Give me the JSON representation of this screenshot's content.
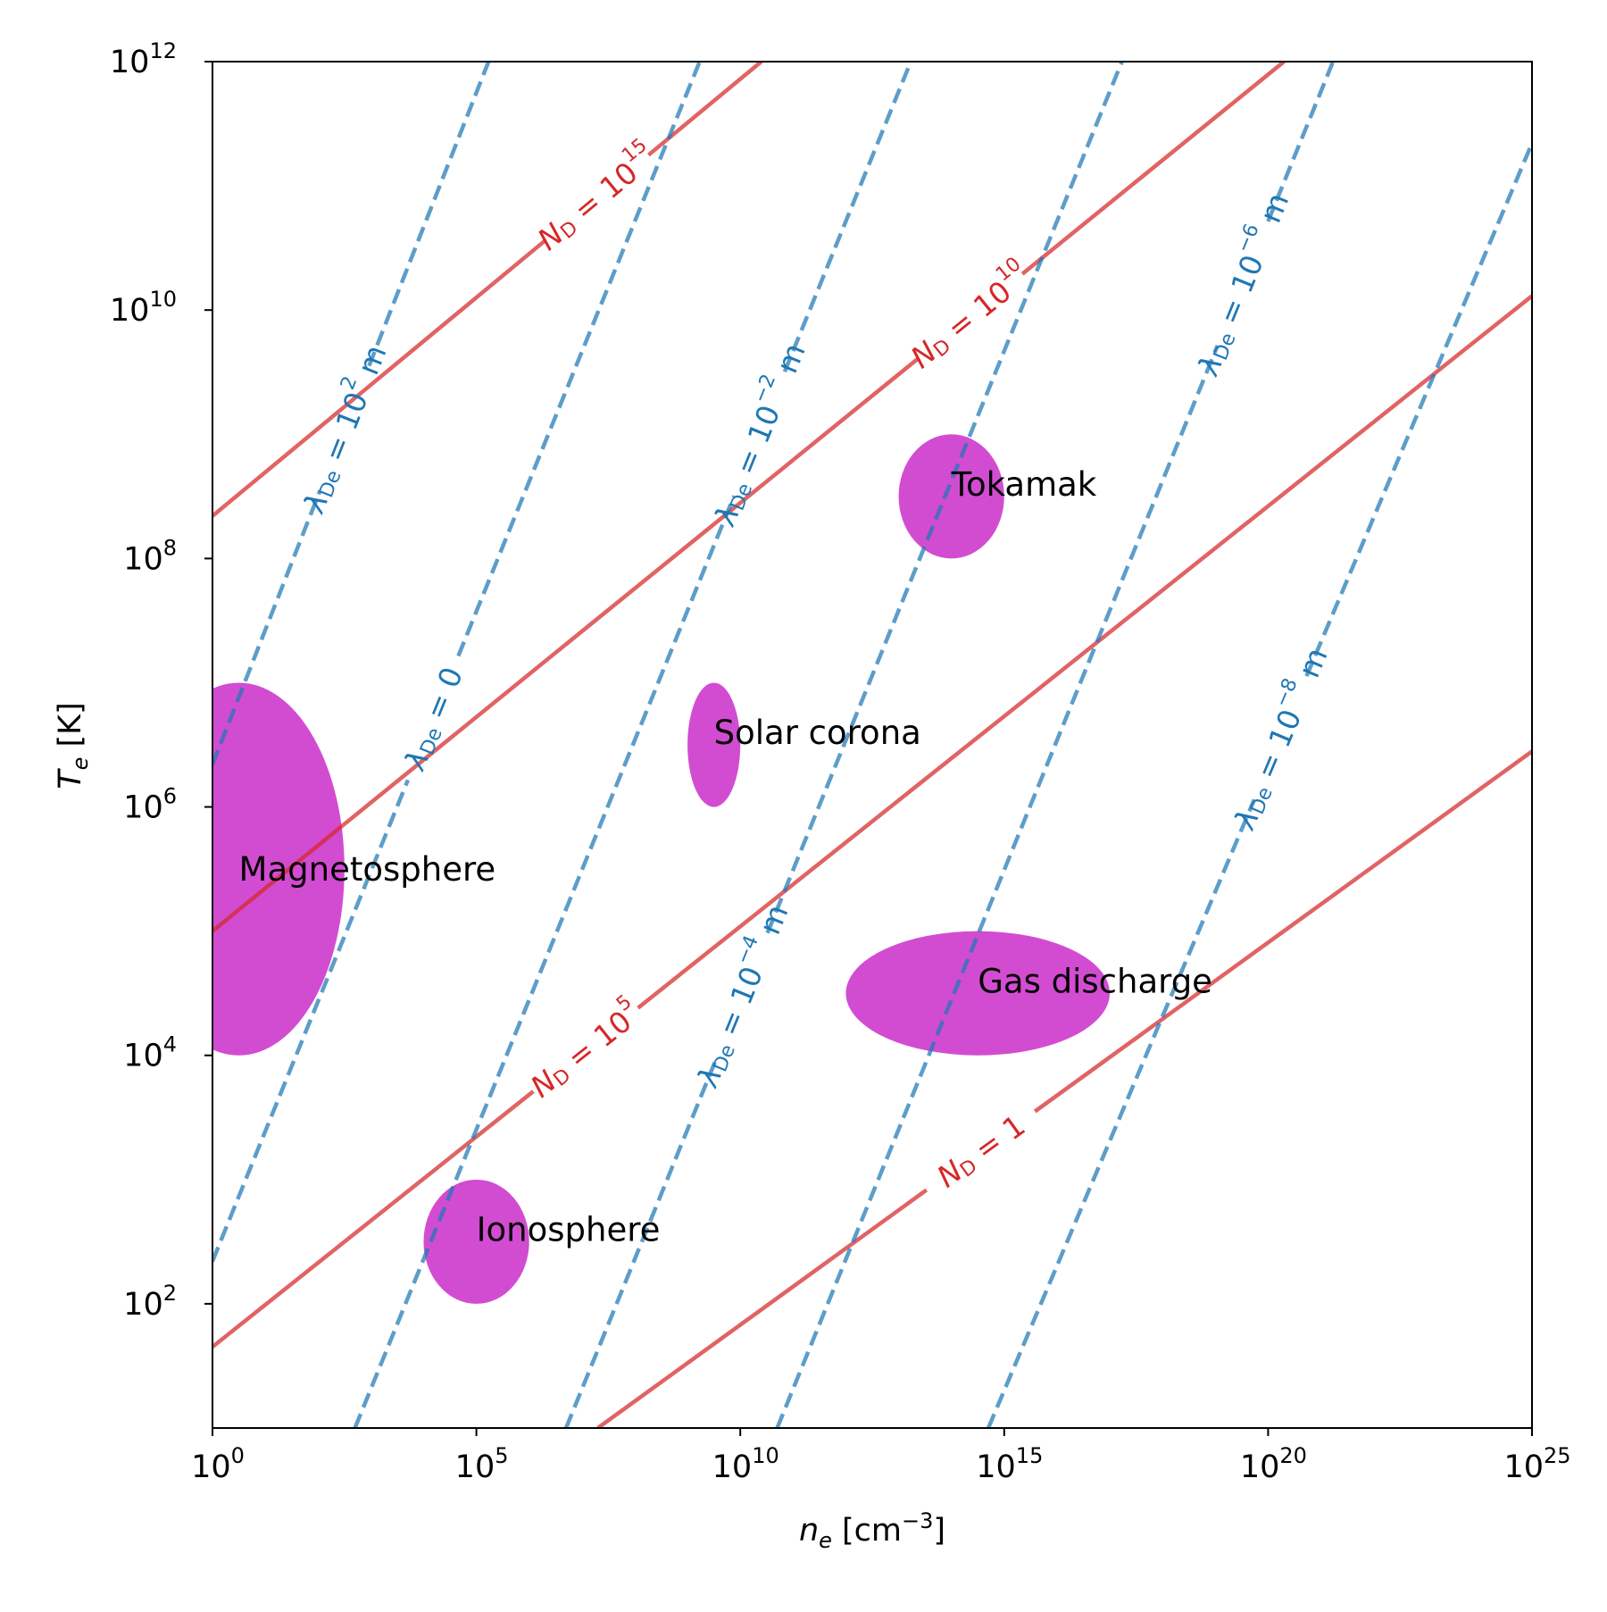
{
  "chart_data": {
    "type": "line",
    "xscale": "log",
    "yscale": "log",
    "xlim": [
      1,
      1e+25
    ],
    "ylim": [
      10,
      1000000000000.0
    ],
    "xlabel": "n_e [cm^-3]",
    "ylabel": "T_e [K]",
    "x_ticks": [
      {
        "value": 1,
        "base": "10",
        "exp": "0"
      },
      {
        "value": 100000.0,
        "base": "10",
        "exp": "5"
      },
      {
        "value": 10000000000.0,
        "base": "10",
        "exp": "10"
      },
      {
        "value": 1000000000000000.0,
        "base": "10",
        "exp": "15"
      },
      {
        "value": 1e+20,
        "base": "10",
        "exp": "20"
      },
      {
        "value": 1e+25,
        "base": "10",
        "exp": "25"
      }
    ],
    "y_ticks": [
      {
        "value": 100,
        "base": "10",
        "exp": "2"
      },
      {
        "value": 10000.0,
        "base": "10",
        "exp": "4"
      },
      {
        "value": 1000000.0,
        "base": "10",
        "exp": "6"
      },
      {
        "value": 100000000.0,
        "base": "10",
        "exp": "8"
      },
      {
        "value": 10000000000.0,
        "base": "10",
        "exp": "10"
      },
      {
        "value": 1000000000000.0,
        "base": "10",
        "exp": "12"
      }
    ],
    "colors": {
      "nd": "#d62728",
      "lambda": "#1f77b4",
      "region": "#cc33cc"
    },
    "nd_lines": [
      {
        "label": "N_D = 1",
        "label_pos": [
          130000000000000.0,
          3100
        ],
        "points": [
          [
            20000000.0,
            10
          ],
          [
            1e+25,
            2800000.0
          ]
        ]
      },
      {
        "label": "N_D = 10^5",
        "label_pos": [
          1300000.0,
          36000.0
        ],
        "points": [
          [
            1,
            45
          ],
          [
            1e+25,
            13000000000.0
          ]
        ]
      },
      {
        "label": "N_D = 10^10",
        "label_pos": [
          130000000000000.0,
          12000000000.0
        ],
        "points": [
          [
            1,
            100000.0
          ],
          [
            2e+20,
            1000000000000.0
          ]
        ]
      },
      {
        "label": "N_D = 10^15",
        "label_pos": [
          1300000.0,
          320000000000.0
        ],
        "points": [
          [
            1,
            220000000.0
          ],
          [
            25000000000.0,
            1000000000000.0
          ]
        ]
      }
    ],
    "lambda_lines": [
      {
        "label": "λ_De = 10^2 m",
        "label_pos": [
          350.0,
          1100000000.0
        ],
        "points": [
          [
            1,
            2200000.0
          ],
          [
            170000.0,
            1000000000000.0
          ]
        ]
      },
      {
        "label": "λ_De = 0",
        "label_pos": [
          150000.0,
          3500000.0
        ],
        "points": [
          [
            1,
            220.0
          ],
          [
            1700000000.0,
            1000000000000.0
          ]
        ]
      },
      {
        "label": "λ_De = 10^-2 m",
        "label_pos": [
          14000000000.0,
          1100000000.0
        ],
        "points": [
          [
            500.0,
            10
          ],
          [
            17000000000000.0,
            1000000000000.0
          ]
        ]
      },
      {
        "label": "λ_De = 10^-4 m",
        "label_pos": [
          5000000000.0,
          35000.0
        ],
        "points": [
          [
            5000000.0,
            10
          ],
          [
            1.7e+17,
            1000000000000.0
          ]
        ]
      },
      {
        "label": "λ_De = 10^-6 m",
        "label_pos": [
          2e+20,
          12000000000.0
        ],
        "points": [
          [
            50000000000.0,
            10
          ],
          [
            1.7e+21,
            1000000000000.0
          ]
        ]
      },
      {
        "label": "λ_De = 10^-8 m",
        "label_pos": [
          2e+20,
          3500000.0
        ],
        "points": [
          [
            500000000000000.0,
            10
          ],
          [
            1e+25,
            220000000000.0
          ]
        ]
      }
    ],
    "regions": [
      {
        "name": "Magnetosphere",
        "center": [
          0.5,
          5.5
        ],
        "rx": 2.0,
        "ry": 1.5,
        "label_at": [
          0.5,
          5.5
        ]
      },
      {
        "name": "Ionosphere",
        "center": [
          5.0,
          2.5
        ],
        "rx": 1.0,
        "ry": 0.5,
        "label_at": [
          5.0,
          2.6
        ]
      },
      {
        "name": "Solar corona",
        "center": [
          9.5,
          6.5
        ],
        "rx": 0.5,
        "ry": 0.5,
        "label_at": [
          9.5,
          6.6
        ]
      },
      {
        "name": "Tokamak",
        "center": [
          14.0,
          8.5
        ],
        "rx": 1.0,
        "ry": 0.5,
        "label_at": [
          14.0,
          8.6
        ]
      },
      {
        "name": "Gas discharge",
        "center": [
          14.5,
          4.5
        ],
        "rx": 2.5,
        "ry": 0.5,
        "label_at": [
          14.5,
          4.6
        ]
      }
    ]
  }
}
